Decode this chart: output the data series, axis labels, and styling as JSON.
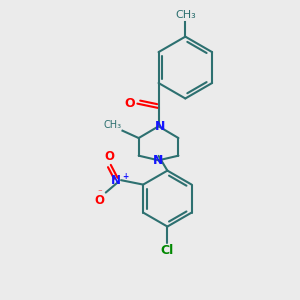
{
  "background_color": "#ebebeb",
  "bond_color": "#2d7070",
  "n_color": "#1414ff",
  "o_color": "#ff0000",
  "cl_color": "#008800",
  "line_width": 1.5,
  "dbo": 0.12,
  "font_size": 8.5,
  "fig_width": 3.0,
  "fig_height": 3.0,
  "dpi": 100,
  "xlim": [
    0,
    10
  ],
  "ylim": [
    0,
    10
  ]
}
